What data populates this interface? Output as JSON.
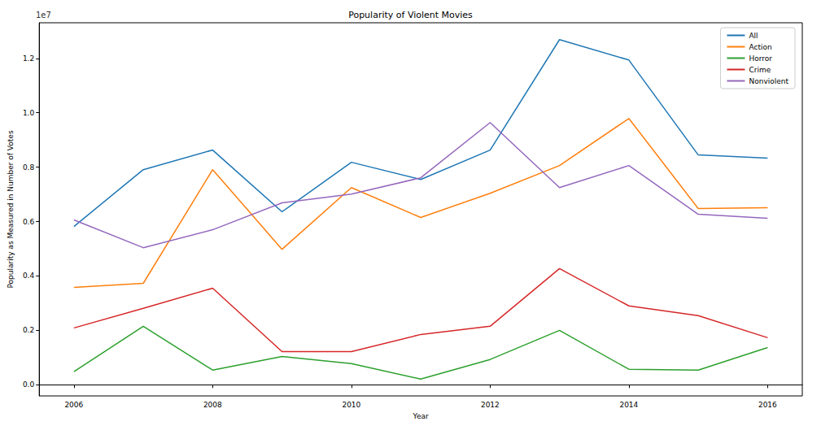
{
  "chart_data": {
    "type": "line",
    "title": "Popularity of Violent Movies",
    "x_label": "Year",
    "y_label": "Popularity as Measured in Number of Votes",
    "annotations": [
      "1e7"
    ],
    "x": [
      2006,
      2007,
      2008,
      2009,
      2010,
      2011,
      2012,
      2013,
      2014,
      2015,
      2016
    ],
    "series": [
      {
        "name": "All",
        "color": "#1f77b4",
        "values": [
          0.582,
          0.791,
          0.863,
          0.636,
          0.818,
          0.755,
          0.863,
          1.269,
          1.194,
          0.845,
          0.833
        ]
      },
      {
        "name": "Action",
        "color": "#ff7f0e",
        "values": [
          0.358,
          0.373,
          0.791,
          0.498,
          0.725,
          0.615,
          0.704,
          0.806,
          0.979,
          0.648,
          0.651
        ]
      },
      {
        "name": "Horror",
        "color": "#2ca02c",
        "values": [
          0.048,
          0.215,
          0.054,
          0.104,
          0.078,
          0.021,
          0.093,
          0.2,
          0.057,
          0.054,
          0.137
        ]
      },
      {
        "name": "Crime",
        "color": "#d62728",
        "values": [
          0.209,
          0.281,
          0.355,
          0.122,
          0.122,
          0.185,
          0.215,
          0.427,
          0.29,
          0.254,
          0.173
        ]
      },
      {
        "name": "Nonviolent",
        "color": "#9467bd",
        "values": [
          0.606,
          0.504,
          0.57,
          0.669,
          0.701,
          0.761,
          0.964,
          0.725,
          0.806,
          0.627,
          0.612
        ]
      }
    ],
    "xlim": [
      2005.5,
      2016.5
    ],
    "xticks": [
      2006,
      2008,
      2010,
      2012,
      2014,
      2016
    ],
    "ylim": [
      -0.041,
      1.331
    ],
    "yticks": [
      {
        "value": 0,
        "label": "0.0"
      },
      {
        "value": 0.2,
        "label": "0.2"
      },
      {
        "value": 0.4,
        "label": "0.4"
      },
      {
        "value": 0.6,
        "label": "0.6"
      },
      {
        "value": 0.8,
        "label": "0.8"
      },
      {
        "value": 1.0,
        "label": "1.0"
      },
      {
        "value": 1.2,
        "label": "1.2"
      }
    ],
    "grid": false,
    "legend": "upper right"
  }
}
